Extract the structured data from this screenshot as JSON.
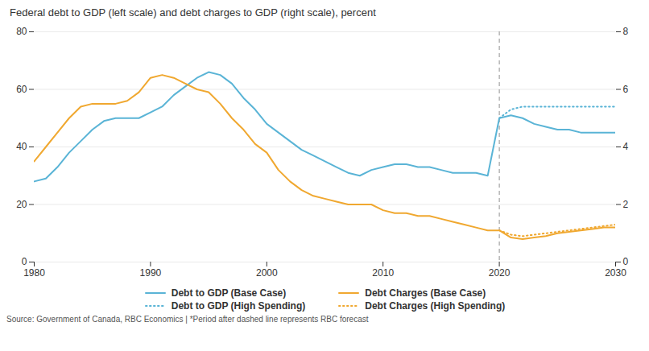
{
  "chart_data": {
    "type": "line",
    "title": "Federal debt to GDP (left scale) and debt charges to GDP (right scale), percent",
    "xlim": [
      1980,
      2030
    ],
    "xticks": [
      1980,
      1990,
      2000,
      2010,
      2020,
      2030
    ],
    "ylim": [
      0,
      80
    ],
    "yticks": [
      0,
      20,
      40,
      60,
      80
    ],
    "y2lim": [
      0,
      8
    ],
    "y2ticks": [
      0,
      2,
      4,
      6,
      8
    ],
    "grid": true,
    "legend": "bottom",
    "annotations": [
      {
        "x": 2020,
        "line_style": "dashed"
      },
      {
        "text": "Source: Government of Canada, RBC Economics | *Period after dashed line represents RBC forecast"
      }
    ],
    "series": [
      {
        "name": "Debt to GDP (Base Case)",
        "color": "#5ab4d6",
        "line_style": "solid",
        "axis": "y",
        "x": [
          1980,
          1981,
          1982,
          1983,
          1984,
          1985,
          1986,
          1987,
          1988,
          1989,
          1990,
          1991,
          1992,
          1993,
          1994,
          1995,
          1996,
          1997,
          1998,
          1999,
          2000,
          2001,
          2002,
          2003,
          2004,
          2005,
          2006,
          2007,
          2008,
          2009,
          2010,
          2011,
          2012,
          2013,
          2014,
          2015,
          2016,
          2017,
          2018,
          2019,
          2020,
          2021,
          2022,
          2023,
          2024,
          2025,
          2026,
          2027,
          2028,
          2029,
          2030
        ],
        "values": [
          28,
          29,
          33,
          38,
          42,
          46,
          49,
          50,
          50,
          50,
          52,
          54,
          58,
          61,
          64,
          66,
          65,
          62,
          57,
          53,
          48,
          45,
          42,
          39,
          37,
          35,
          33,
          31,
          30,
          32,
          33,
          34,
          34,
          33,
          33,
          32,
          31,
          31,
          31,
          30,
          50,
          51,
          50,
          48,
          47,
          46,
          46,
          45,
          45,
          45,
          45
        ]
      },
      {
        "name": "Debt to GDP (High Spending)",
        "color": "#5ab4d6",
        "line_style": "dotted",
        "axis": "y",
        "x": [
          2020,
          2021,
          2022,
          2023,
          2024,
          2025,
          2026,
          2027,
          2028,
          2029,
          2030
        ],
        "values": [
          50,
          53,
          54,
          54,
          54,
          54,
          54,
          54,
          54,
          54,
          54
        ]
      },
      {
        "name": "Debt Charges (Base Case)",
        "color": "#f0a830",
        "line_style": "solid",
        "axis": "y2",
        "x": [
          1980,
          1981,
          1982,
          1983,
          1984,
          1985,
          1986,
          1987,
          1988,
          1989,
          1990,
          1991,
          1992,
          1993,
          1994,
          1995,
          1996,
          1997,
          1998,
          1999,
          2000,
          2001,
          2002,
          2003,
          2004,
          2005,
          2006,
          2007,
          2008,
          2009,
          2010,
          2011,
          2012,
          2013,
          2014,
          2015,
          2016,
          2017,
          2018,
          2019,
          2020,
          2021,
          2022,
          2023,
          2024,
          2025,
          2026,
          2027,
          2028,
          2029,
          2030
        ],
        "values": [
          3.5,
          4.0,
          4.5,
          5.0,
          5.4,
          5.5,
          5.5,
          5.5,
          5.6,
          5.9,
          6.4,
          6.5,
          6.4,
          6.2,
          6.0,
          5.9,
          5.5,
          5.0,
          4.6,
          4.1,
          3.8,
          3.2,
          2.8,
          2.5,
          2.3,
          2.2,
          2.1,
          2.0,
          2.0,
          2.0,
          1.8,
          1.7,
          1.7,
          1.6,
          1.6,
          1.5,
          1.4,
          1.3,
          1.2,
          1.1,
          1.1,
          0.85,
          0.8,
          0.85,
          0.9,
          1.0,
          1.05,
          1.1,
          1.15,
          1.2,
          1.2
        ]
      },
      {
        "name": "Debt Charges (High Spending)",
        "color": "#f0a830",
        "line_style": "dotted",
        "axis": "y2",
        "x": [
          2020,
          2021,
          2022,
          2023,
          2024,
          2025,
          2026,
          2027,
          2028,
          2029,
          2030
        ],
        "values": [
          1.1,
          0.95,
          0.9,
          0.95,
          1.0,
          1.05,
          1.1,
          1.15,
          1.2,
          1.25,
          1.3
        ]
      }
    ]
  }
}
